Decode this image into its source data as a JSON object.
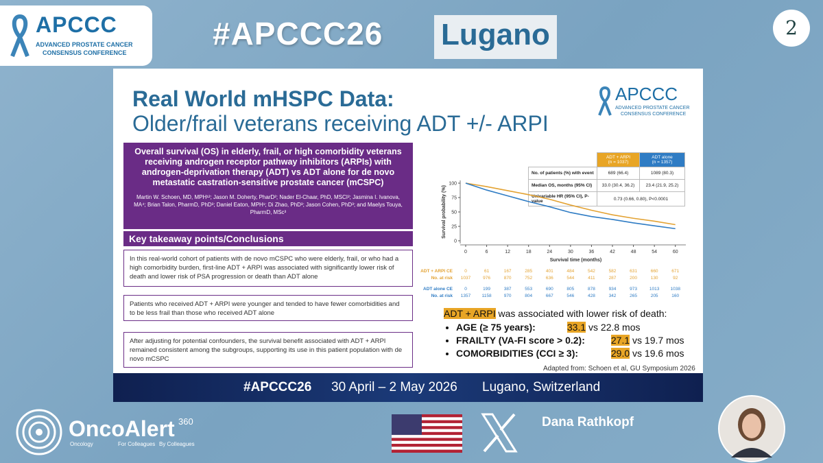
{
  "header": {
    "logo": {
      "name": "APCCC",
      "line1": "ADVANCED PROSTATE CANCER",
      "line2": "CONSENSUS CONFERENCE"
    },
    "hashtag": "#APCCC26",
    "city": "Lugano",
    "slide_number": "2"
  },
  "slide": {
    "title": "Real World mHSPC Data:",
    "subtitle": "Older/frail veterans receiving ADT +/- ARPI",
    "logo": {
      "name": "APCCC",
      "line1": "ADVANCED PROSTATE CANCER",
      "line2": "CONSENSUS CONFERENCE"
    },
    "abstract": {
      "title": "Overall survival (OS) in elderly, frail, or high comorbidity veterans receiving androgen receptor pathway inhibitors (ARPIs) with androgen-deprivation therapy (ADT) vs ADT alone for de novo metastatic castration-sensitive prostate cancer (mCSPC)",
      "authors": "Martin W. Schoen, MD, MPH¹²; Jason M. Doherty, PharD²; Nader El-Chaar, PhD, MSCI²; Jasmina I. Ivanova, MA⁴; Brian Talon, PharmD, PhD³; Daniel Eaton, MPH¹; Di Zhao, PhD³; Jason Cohen, PhD³; and Maelys Touya, PharmD, MSc³"
    },
    "takeaway": {
      "heading": "Key takeaway points/Conclusions",
      "points": [
        "In this real-world cohort of patients with de novo mCSPC who were elderly, frail, or who had a high comorbidity burden, first-line ADT + ARPI was associated with significantly lower risk of death and lower risk of PSA progression or death than ADT alone",
        "Patients who received ADT + ARPI were younger and tended to have fewer comorbidities and to be less frail than those who received ADT alone",
        "After adjusting for potential confounders, the survival benefit associated with ADT + ARPI remained consistent among the subgroups, supporting its use in this patient population with de novo mCSPC"
      ]
    },
    "table": {
      "headers": [
        "ADT + ARPI",
        "ADT alone"
      ],
      "header_n": [
        "(n = 1037)",
        "(n = 1357)"
      ],
      "rows": [
        {
          "label": "No. of patients (%) with event",
          "cells": [
            "689 (66.4)",
            "1089 (80.3)"
          ]
        },
        {
          "label": "Median OS, months (95% CI)",
          "cells": [
            "33.0 (30.4, 36.2)",
            "23.4 (21.9, 25.2)"
          ]
        },
        {
          "label": "Univariable HR (95% CI), P-value",
          "cells": [
            "0.73 (0.66, 0.80), P<0.0001"
          ]
        }
      ]
    },
    "km_chart": {
      "type": "line",
      "y_label": "Survival probability (%)",
      "x_label": "Survival time (months)",
      "x": [
        0,
        6,
        12,
        18,
        24,
        30,
        36,
        42,
        48,
        54,
        60
      ],
      "xlim": [
        0,
        63
      ],
      "ylim": [
        0,
        100
      ],
      "xticks": [
        0,
        6,
        12,
        18,
        24,
        30,
        36,
        42,
        48,
        54,
        60
      ],
      "yticks": [
        0,
        25,
        50,
        75,
        100
      ],
      "series": [
        {
          "color": "#e3a232",
          "values": [
            100,
            94,
            87,
            80,
            72,
            62,
            53,
            45,
            39,
            34,
            28
          ]
        },
        {
          "color": "#2f7cc4",
          "values": [
            100,
            88,
            78,
            68,
            59,
            49,
            42,
            37,
            31,
            26,
            21
          ]
        }
      ],
      "risk_table": [
        {
          "label": "ADT + ARPI CE",
          "color": "#e3a232",
          "values": [
            0,
            61,
            167,
            285,
            401,
            484,
            542,
            582,
            631,
            660,
            671
          ]
        },
        {
          "label": "No. at risk",
          "color": "#e3a232",
          "values": [
            1037,
            976,
            870,
            752,
            636,
            544,
            411,
            287,
            200,
            130,
            92
          ]
        },
        {
          "label": "ADT alone CE",
          "color": "#2f7cc4",
          "values": [
            0,
            199,
            387,
            553,
            690,
            805,
            878,
            934,
            973,
            1013,
            1038
          ]
        },
        {
          "label": "No. at risk",
          "color": "#2f7cc4",
          "values": [
            1357,
            1158,
            970,
            804,
            667,
            546,
            428,
            342,
            265,
            205,
            160
          ]
        }
      ]
    },
    "result": {
      "highlight": "ADT + ARPI",
      "text": "was associated with lower risk of death:",
      "bullets": [
        {
          "label": "AGE (≥ 75 years):",
          "value": "33.1",
          "comparison": "vs 22.8 mos"
        },
        {
          "label": "FRAILTY (VA-FI score > 0.2):",
          "value": "27.1",
          "comparison": "vs 19.7 mos"
        },
        {
          "label": "COMORBIDITIES (CCI ≥ 3):",
          "value": "29.0",
          "comparison": "vs 19.6 mos"
        }
      ]
    },
    "source": "Adapted from: Schoen et al, GU Symposium 2026",
    "footer": {
      "hashtag": "#APCCC26",
      "dates": "30 April – 2 May 2026",
      "location": "Lugano, Switzerland"
    }
  },
  "bottom": {
    "brand": "OncoAlert",
    "brand_sup": "360",
    "tagline": [
      "Oncology",
      "For Colleagues",
      "By Colleagues"
    ],
    "speaker": "Dana Rathkopf"
  }
}
